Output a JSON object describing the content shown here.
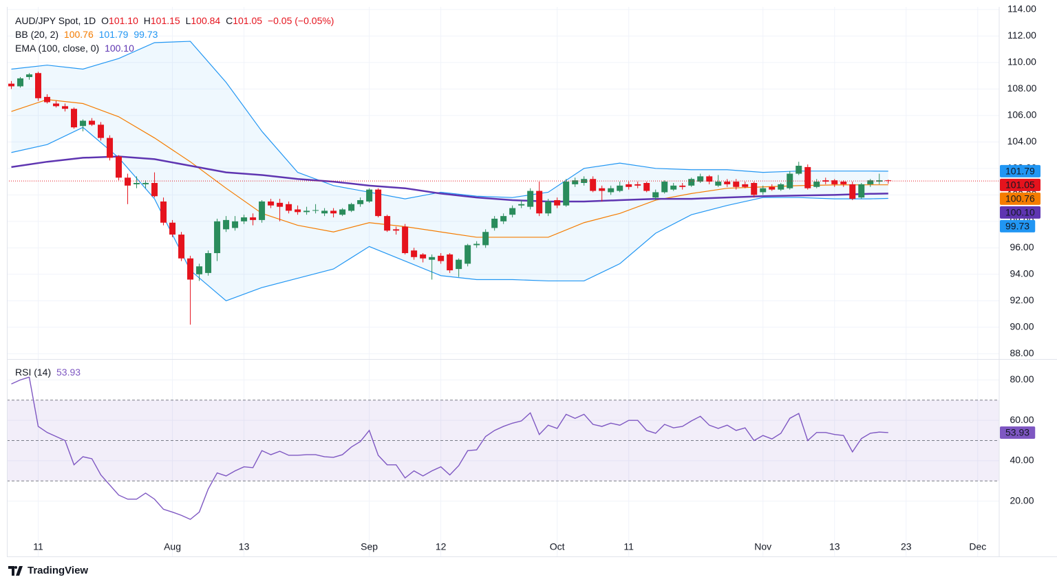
{
  "branding": "TradingView",
  "chart_data": [
    {
      "type": "candlestick",
      "title": "AUD/JPY Spot, 1D",
      "ohlc_legend": [
        {
          "key": "O",
          "value": "101.10"
        },
        {
          "key": "H",
          "value": "101.15"
        },
        {
          "key": "L",
          "value": "100.84"
        },
        {
          "key": "C",
          "value": "101.05"
        }
      ],
      "change": "−0.05 (−0.05%)",
      "up_color": "#2a8c5c",
      "down_color": "#e5131d",
      "x": [
        0,
        1,
        2,
        3,
        4,
        5,
        6,
        7,
        8,
        9,
        10,
        11,
        12,
        13,
        14,
        15,
        16,
        17,
        18,
        19,
        20,
        21,
        22,
        23,
        24,
        25,
        26,
        27,
        28,
        29,
        30,
        31,
        32,
        33,
        34,
        35,
        36,
        37,
        38,
        39,
        40,
        41,
        42,
        43,
        44,
        45,
        46,
        47,
        48,
        49,
        50,
        51,
        52,
        53,
        54,
        55,
        56,
        57,
        58,
        59,
        60,
        61,
        62,
        63,
        64,
        65,
        66,
        67,
        68,
        69,
        70,
        71,
        72,
        73,
        74,
        75,
        76,
        77,
        78,
        79,
        80,
        81,
        82,
        83,
        84,
        85,
        86,
        87,
        88,
        89,
        90,
        91,
        92,
        93,
        94,
        95,
        96,
        97,
        98
      ],
      "ohlc": [
        [
          108.4,
          108.6,
          108.0,
          108.2
        ],
        [
          108.2,
          108.9,
          108.1,
          108.8
        ],
        [
          108.9,
          109.2,
          108.7,
          109.1
        ],
        [
          109.2,
          109.3,
          107.1,
          107.3
        ],
        [
          107.4,
          107.6,
          106.9,
          107.0
        ],
        [
          106.9,
          107.1,
          106.6,
          106.7
        ],
        [
          106.7,
          106.9,
          106.3,
          106.5
        ],
        [
          106.5,
          106.6,
          105.0,
          105.1
        ],
        [
          105.2,
          105.7,
          104.8,
          105.6
        ],
        [
          105.6,
          105.8,
          105.2,
          105.3
        ],
        [
          105.3,
          105.5,
          104.1,
          104.3
        ],
        [
          104.3,
          104.5,
          102.6,
          102.8
        ],
        [
          102.9,
          103.0,
          101.1,
          101.3
        ],
        [
          101.3,
          101.6,
          99.3,
          100.7
        ],
        [
          100.8,
          101.4,
          100.5,
          100.9
        ],
        [
          100.8,
          101.1,
          100.5,
          100.9
        ],
        [
          100.9,
          101.7,
          99.8,
          99.9
        ],
        [
          99.5,
          99.8,
          97.7,
          97.9
        ],
        [
          97.9,
          98.1,
          96.8,
          97.0
        ],
        [
          97.0,
          97.2,
          95.0,
          95.2
        ],
        [
          95.2,
          95.4,
          90.2,
          93.6
        ],
        [
          94.0,
          94.8,
          93.5,
          94.6
        ],
        [
          94.1,
          95.8,
          93.9,
          95.6
        ],
        [
          95.6,
          98.2,
          95.0,
          98.0
        ],
        [
          97.4,
          98.4,
          97.2,
          98.1
        ],
        [
          97.5,
          98.4,
          97.3,
          98.0
        ],
        [
          98.0,
          98.5,
          97.8,
          98.3
        ],
        [
          98.3,
          98.6,
          97.7,
          98.1
        ],
        [
          98.1,
          99.6,
          97.9,
          99.5
        ],
        [
          99.5,
          99.7,
          99.0,
          99.2
        ],
        [
          99.4,
          99.7,
          98.0,
          99.1
        ],
        [
          99.3,
          99.5,
          98.6,
          98.8
        ],
        [
          98.9,
          99.2,
          98.5,
          98.7
        ],
        [
          98.7,
          99.1,
          98.5,
          98.8
        ],
        [
          98.8,
          99.3,
          98.6,
          98.85
        ],
        [
          98.6,
          99.0,
          98.4,
          98.8
        ],
        [
          98.8,
          99.0,
          98.3,
          98.6
        ],
        [
          98.5,
          99.0,
          98.4,
          98.9
        ],
        [
          98.8,
          99.4,
          98.7,
          99.3
        ],
        [
          99.3,
          99.8,
          99.1,
          99.6
        ],
        [
          99.5,
          100.5,
          99.4,
          100.4
        ],
        [
          100.4,
          100.5,
          98.3,
          98.4
        ],
        [
          98.4,
          98.5,
          97.2,
          97.3
        ],
        [
          97.4,
          97.6,
          97.0,
          97.3
        ],
        [
          97.6,
          97.8,
          95.5,
          95.6
        ],
        [
          95.8,
          96.0,
          95.1,
          95.3
        ],
        [
          95.5,
          95.6,
          94.9,
          95.2
        ],
        [
          95.1,
          95.5,
          93.6,
          95.3
        ],
        [
          95.4,
          95.6,
          94.8,
          95.0
        ],
        [
          95.5,
          95.6,
          94.1,
          94.3
        ],
        [
          94.4,
          95.2,
          93.8,
          95.1
        ],
        [
          94.8,
          96.3,
          94.6,
          96.2
        ],
        [
          96.2,
          96.5,
          96.0,
          96.3
        ],
        [
          96.2,
          97.4,
          96.0,
          97.2
        ],
        [
          97.5,
          98.4,
          97.3,
          98.2
        ],
        [
          98.0,
          98.6,
          97.8,
          98.4
        ],
        [
          98.5,
          99.2,
          98.3,
          99.0
        ],
        [
          99.2,
          99.6,
          99.0,
          99.3
        ],
        [
          99.1,
          100.5,
          98.9,
          100.3
        ],
        [
          100.3,
          101.0,
          98.4,
          98.6
        ],
        [
          98.6,
          99.7,
          98.4,
          99.5
        ],
        [
          99.6,
          99.8,
          99.0,
          99.2
        ],
        [
          99.2,
          101.2,
          99.1,
          101.0
        ],
        [
          100.8,
          101.3,
          100.6,
          101.1
        ],
        [
          100.9,
          101.4,
          100.7,
          101.2
        ],
        [
          101.2,
          101.4,
          100.2,
          100.3
        ],
        [
          100.5,
          100.7,
          99.5,
          100.3
        ],
        [
          100.2,
          100.7,
          100.0,
          100.5
        ],
        [
          100.3,
          101.0,
          100.2,
          100.7
        ],
        [
          100.8,
          101.0,
          100.4,
          100.6
        ],
        [
          100.8,
          101.0,
          100.5,
          100.7
        ],
        [
          100.9,
          101.0,
          100.2,
          100.3
        ],
        [
          99.8,
          100.4,
          99.6,
          100.2
        ],
        [
          100.2,
          101.1,
          100.1,
          101.0
        ],
        [
          100.4,
          100.9,
          100.3,
          100.7
        ],
        [
          100.7,
          100.9,
          100.4,
          100.6
        ],
        [
          100.7,
          101.3,
          100.6,
          101.2
        ],
        [
          101.0,
          101.6,
          100.9,
          101.4
        ],
        [
          101.4,
          101.5,
          100.8,
          101.0
        ],
        [
          100.7,
          101.5,
          100.6,
          101.0
        ],
        [
          101.0,
          101.2,
          100.6,
          100.8
        ],
        [
          101.0,
          101.2,
          100.4,
          100.6
        ],
        [
          100.8,
          101.0,
          100.5,
          100.6
        ],
        [
          100.9,
          101.0,
          99.8,
          100.0
        ],
        [
          100.2,
          100.7,
          100.0,
          100.5
        ],
        [
          100.6,
          100.8,
          100.3,
          100.4
        ],
        [
          100.4,
          100.9,
          100.3,
          100.8
        ],
        [
          100.5,
          101.8,
          100.4,
          101.6
        ],
        [
          101.6,
          102.5,
          101.5,
          102.2
        ],
        [
          102.1,
          102.3,
          100.4,
          100.5
        ],
        [
          100.6,
          101.2,
          100.5,
          101.0
        ],
        [
          101.1,
          101.3,
          100.8,
          101.0
        ],
        [
          101.1,
          101.2,
          100.6,
          100.8
        ],
        [
          101.0,
          101.1,
          100.6,
          100.8
        ],
        [
          100.8,
          101.0,
          99.6,
          99.7
        ],
        [
          99.8,
          100.9,
          99.7,
          100.8
        ],
        [
          100.8,
          101.2,
          100.6,
          101.1
        ],
        [
          101.0,
          101.6,
          100.8,
          101.1
        ],
        [
          101.1,
          101.15,
          100.84,
          101.05
        ]
      ],
      "bollinger": {
        "label": "BB (20, 2)",
        "legend_values": [
          "100.76",
          "101.79",
          "99.73"
        ],
        "basis_color": "#f57c00",
        "band_color": "#2196f3",
        "x": [
          0,
          4,
          8,
          12,
          16,
          20,
          24,
          28,
          32,
          36,
          40,
          44,
          48,
          52,
          56,
          60,
          64,
          68,
          72,
          76,
          80,
          84,
          88,
          92,
          96,
          98
        ],
        "upper": [
          109.5,
          109.8,
          109.5,
          110.3,
          111.5,
          111.6,
          108.5,
          104.8,
          101.7,
          100.7,
          100.2,
          99.7,
          100.2,
          99.9,
          99.8,
          100.2,
          102.0,
          102.4,
          102.0,
          101.9,
          101.9,
          101.7,
          101.8,
          101.8,
          101.8,
          101.79
        ],
        "basis": [
          106.3,
          107.2,
          106.9,
          105.9,
          104.3,
          102.5,
          100.5,
          98.6,
          97.7,
          97.2,
          97.9,
          97.6,
          97.2,
          96.8,
          96.8,
          96.8,
          97.9,
          98.6,
          99.6,
          100.1,
          100.5,
          100.6,
          100.7,
          100.75,
          100.76,
          100.76
        ],
        "lower": [
          103.2,
          103.8,
          105.1,
          102.8,
          99.7,
          94.3,
          92.0,
          93.0,
          93.7,
          94.4,
          96.1,
          95.0,
          93.9,
          93.6,
          93.6,
          93.5,
          93.5,
          94.8,
          97.1,
          98.5,
          99.2,
          99.8,
          99.8,
          99.7,
          99.7,
          99.73
        ]
      },
      "ema": {
        "label": "EMA (100, close, 0)",
        "legend_value": "100.10",
        "color": "#5e35b1",
        "x": [
          0,
          4,
          8,
          12,
          16,
          20,
          24,
          28,
          32,
          36,
          40,
          44,
          48,
          52,
          56,
          60,
          64,
          68,
          72,
          76,
          80,
          84,
          88,
          92,
          96,
          98
        ],
        "values": [
          102.1,
          102.5,
          102.8,
          102.9,
          102.7,
          102.2,
          101.7,
          101.5,
          101.2,
          101.0,
          100.7,
          100.5,
          100.1,
          99.8,
          99.6,
          99.5,
          99.5,
          99.6,
          99.7,
          99.7,
          99.8,
          99.9,
          99.95,
          100.0,
          100.08,
          100.1
        ]
      },
      "price_tags": [
        {
          "value": 101.79,
          "label": "101.79",
          "color": "#2196f3"
        },
        {
          "value": 101.05,
          "label": "101.05",
          "color": "#e5131d"
        },
        {
          "value": 100.76,
          "label": "100.76",
          "color": "#f57c00"
        },
        {
          "value": 100.1,
          "label": "100.10",
          "color": "#5e35b1"
        },
        {
          "value": 99.73,
          "label": "99.73",
          "color": "#2196f3"
        }
      ],
      "xlim": [
        -0.5,
        110.4
      ],
      "ylim": [
        87.6,
        114.2
      ],
      "yticks": [
        {
          "value": 88,
          "label": "88.00"
        },
        {
          "value": 90,
          "label": "90.00"
        },
        {
          "value": 92,
          "label": "92.00"
        },
        {
          "value": 94,
          "label": "94.00"
        },
        {
          "value": 96,
          "label": "96.00"
        },
        {
          "value": 98,
          "label": "98.00"
        },
        {
          "value": 100,
          "label": "100.00"
        },
        {
          "value": 102,
          "label": "102.00"
        },
        {
          "value": 104,
          "label": "104.00"
        },
        {
          "value": 106,
          "label": "106.00"
        },
        {
          "value": 108,
          "label": "108.00"
        },
        {
          "value": 110,
          "label": "110.00"
        },
        {
          "value": 112,
          "label": "112.00"
        },
        {
          "value": 114,
          "label": "114.00"
        }
      ],
      "grid": true
    },
    {
      "type": "line",
      "label": "RSI (14)",
      "legend_value": "53.93",
      "color": "#7e57c2",
      "x": [
        0,
        1,
        2,
        3,
        4,
        5,
        6,
        7,
        8,
        9,
        10,
        11,
        12,
        13,
        14,
        15,
        16,
        17,
        18,
        19,
        20,
        21,
        22,
        23,
        24,
        25,
        26,
        27,
        28,
        29,
        30,
        31,
        32,
        33,
        34,
        35,
        36,
        37,
        38,
        39,
        40,
        41,
        42,
        43,
        44,
        45,
        46,
        47,
        48,
        49,
        50,
        51,
        52,
        53,
        54,
        55,
        56,
        57,
        58,
        59,
        60,
        61,
        62,
        63,
        64,
        65,
        66,
        67,
        68,
        69,
        70,
        71,
        72,
        73,
        74,
        75,
        76,
        77,
        78,
        79,
        80,
        81,
        82,
        83,
        84,
        85,
        86,
        87,
        88,
        89,
        90,
        91,
        92,
        93,
        94,
        95,
        96,
        97,
        98
      ],
      "values": [
        78,
        80,
        81.4,
        57,
        54,
        52,
        50,
        38,
        42,
        41,
        33,
        28,
        23,
        21,
        21,
        24,
        21,
        16,
        14.6,
        13,
        11,
        14.6,
        26,
        34,
        32.5,
        35,
        37,
        36.6,
        45,
        43,
        44.7,
        42.7,
        42.7,
        43,
        43,
        42,
        41.7,
        43,
        46.8,
        49.5,
        55,
        42.7,
        38,
        38,
        31.5,
        35,
        32.5,
        35,
        37,
        33,
        37.6,
        45,
        45.4,
        52,
        55,
        57,
        58.6,
        59.7,
        63.7,
        53,
        57.6,
        56,
        63,
        61,
        63,
        58,
        57,
        58.6,
        57.6,
        60,
        60,
        55,
        53.6,
        58,
        56.3,
        57,
        59.7,
        62,
        57.6,
        56,
        57.6,
        55,
        56.3,
        50,
        52.5,
        50.8,
        53.6,
        61,
        63.4,
        50,
        54,
        54,
        53,
        52.5,
        44.4,
        51,
        53.6,
        54.2,
        53.93
      ],
      "bands": [
        30,
        50,
        70
      ],
      "band_fill": "#7e57c2",
      "price_tag": {
        "value": 53.93,
        "label": "53.93"
      },
      "xlim": [
        -0.5,
        110.4
      ],
      "xticks": [
        {
          "value": 3,
          "label": "11"
        },
        {
          "value": 18,
          "label": "Aug"
        },
        {
          "value": 26,
          "label": "13"
        },
        {
          "value": 40,
          "label": "Sep"
        },
        {
          "value": 48,
          "label": "12"
        },
        {
          "value": 61,
          "label": "Oct"
        },
        {
          "value": 69,
          "label": "11"
        },
        {
          "value": 84,
          "label": "Nov"
        },
        {
          "value": 92,
          "label": "13"
        },
        {
          "value": 100,
          "label": "23"
        },
        {
          "value": 108,
          "label": "Dec"
        }
      ],
      "ylim": [
        -7,
        90
      ],
      "yticks": [
        {
          "value": 20,
          "label": "20.00"
        },
        {
          "value": 40,
          "label": "40.00"
        },
        {
          "value": 60,
          "label": "60.00"
        },
        {
          "value": 80,
          "label": "80.00"
        }
      ],
      "grid": true
    }
  ]
}
